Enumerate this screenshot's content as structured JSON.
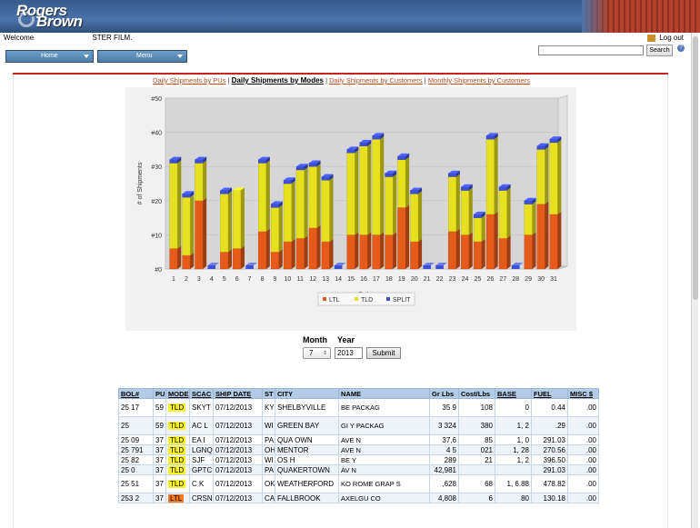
{
  "header": {
    "logo_line1": "Rogers",
    "logo_line2": "Brown",
    "welcome_prefix": "Welcome",
    "welcome_suffix": "STER FILM.",
    "logout_label": "Log out",
    "search_value": "",
    "search_button": "Search",
    "help_icon": "?"
  },
  "nav": {
    "home_label": "Home",
    "menu_label": "Menu"
  },
  "tabs": [
    {
      "label": "Daily Shipments by PUs",
      "active": false
    },
    {
      "label": "Daily Shipments by Modes",
      "active": true
    },
    {
      "label": "Daily Shipments by Customers",
      "active": false
    },
    {
      "label": "Monthly Shipments by Customers",
      "active": false
    }
  ],
  "tab_separator": "|",
  "chart_data": {
    "type": "bar",
    "stacked": true,
    "style": "3d",
    "categories": [
      "1",
      "2",
      "3",
      "4",
      "5",
      "6",
      "7",
      "8",
      "9",
      "10",
      "11",
      "12",
      "13",
      "14",
      "15",
      "16",
      "17",
      "18",
      "19",
      "20",
      "21",
      "22",
      "23",
      "24",
      "25",
      "26",
      "27",
      "28",
      "29",
      "30",
      "31"
    ],
    "series": [
      {
        "name": "LTL",
        "color": "#e65a1a",
        "values": [
          6,
          4,
          20,
          0,
          5,
          6,
          0,
          11,
          5,
          8,
          9,
          12,
          8,
          0,
          10,
          10,
          10,
          10,
          18,
          8,
          0,
          0,
          11,
          10,
          8,
          16,
          9,
          0,
          10,
          19,
          16
        ]
      },
      {
        "name": "TLD",
        "color": "#e6e01e",
        "values": [
          25,
          17,
          11,
          0,
          17,
          17,
          0,
          20,
          13,
          17,
          20,
          18,
          18,
          0,
          24,
          26,
          28,
          17,
          14,
          14,
          0,
          0,
          16,
          13,
          7,
          22,
          14,
          0,
          9,
          16,
          21
        ]
      },
      {
        "name": "SPLIT",
        "color": "#3d4fd6",
        "values": [
          1,
          1,
          1,
          0,
          1,
          0,
          0,
          1,
          1,
          1,
          1,
          1,
          1,
          0,
          1,
          1,
          1,
          1,
          1,
          1,
          0,
          0,
          1,
          1,
          1,
          1,
          1,
          0,
          1,
          1,
          1
        ]
      }
    ],
    "ylabel": "# of Shipments",
    "xlabel": "Dates",
    "yticks": [
      "#0",
      "#10",
      "#20",
      "#30",
      "#40",
      "#50"
    ],
    "ylim": [
      0,
      50
    ],
    "legend_position": "bottom",
    "grid": true
  },
  "filters": {
    "month_label": "Month",
    "year_label": "Year",
    "month_value": "7",
    "year_value": "2013",
    "submit_label": "Submit"
  },
  "table": {
    "columns": [
      "BOL#",
      "PU",
      "MODE",
      "SCAC",
      "SHIP DATE",
      "ST",
      "CITY",
      "NAME",
      "Gr Lbs",
      "Cost/Lbs",
      "BASE",
      "FUEL",
      "MISC $"
    ],
    "rows": [
      [
        "25   17",
        "59",
        "TLD",
        "SKYT",
        "07/12/2013",
        "KY",
        "SHELBYVILLE",
        "BE    PACKAG",
        "35   9",
        "  108",
        "   0",
        "  0.44",
        ".00"
      ],
      [
        "25   ",
        "59",
        "TLD",
        "AC  L",
        "07/12/2013",
        "WI",
        "GREEN BAY",
        "GI    Y PACKAG",
        "3  324",
        "    380",
        "1,   2",
        "  .29",
        ".00"
      ],
      [
        "25   09",
        "37",
        "TLD",
        "EA  I",
        "07/12/2013",
        "PA",
        "QUA    OWN",
        "AVE    N",
        "37,6   ",
        "    85",
        "1,   0",
        "291.03",
        ".00"
      ],
      [
        "25  791",
        "37",
        "TLD",
        "LGNQ",
        "07/12/2013",
        "OH",
        "MENTOR",
        "AVE    N",
        "4   5",
        "  021",
        "1,   28",
        "270.56",
        ".00"
      ],
      [
        "25  82",
        "37",
        "TLD",
        "SJF",
        "07/12/2013",
        "WI",
        "OS   H",
        "BE    Y",
        "   289",
        "    21",
        "1,   2",
        "396.50",
        ".00"
      ],
      [
        "25   0",
        "37",
        "TLD",
        "GPTC",
        "07/12/2013",
        "PA",
        "QUAKERTOWN",
        "AV    N",
        "42,981",
        "    ",
        "    ",
        "291.03",
        ".00"
      ],
      [
        "25  51",
        "37",
        "TLD",
        "C   K",
        "07/12/2013",
        "OK",
        "WEATHERFORD",
        "KO    ROME GRAP   S",
        "  ,628",
        "   68",
        "1,   6.88",
        "478.82",
        ".00"
      ],
      [
        "253  2",
        "37",
        "LTL",
        "CRSN",
        "07/12/2013",
        "CA",
        "FALLBROOK",
        "AXELGU    CO",
        "4,808",
        "    6",
        "    80",
        "130.18",
        ".00"
      ]
    ]
  }
}
